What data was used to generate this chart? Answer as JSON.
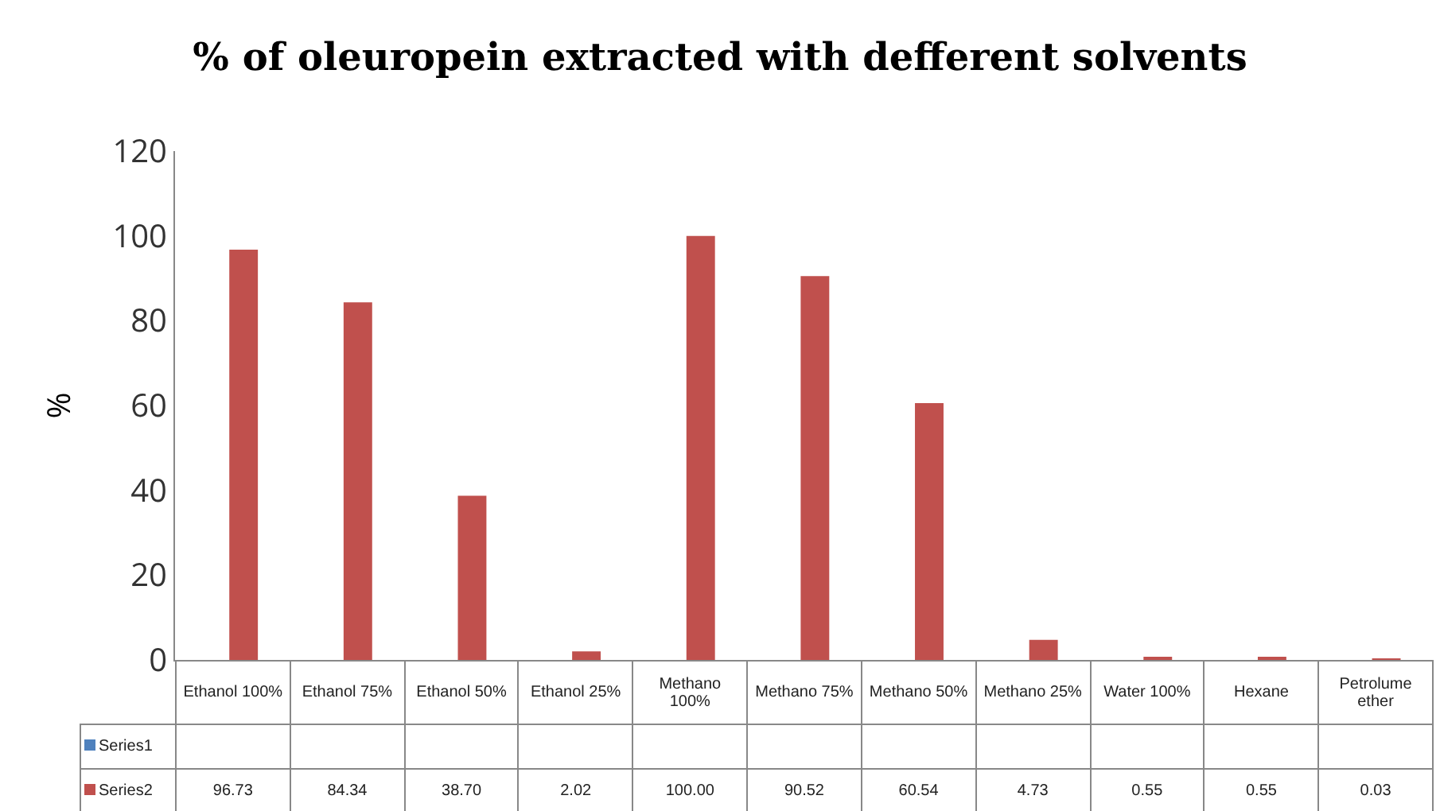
{
  "chart_data": {
    "type": "bar",
    "title": "% of oleuropein extracted with defferent solvents",
    "ylabel": "%",
    "categories": [
      "Ethanol 100%",
      "Ethanol 75%",
      "Ethanol 50%",
      "Ethanol 25%",
      "Methano 100%",
      "Methano 75%",
      "Methano 50%",
      "Methano 25%",
      "Water 100%",
      "Hexane",
      "Petrolume ether"
    ],
    "series": [
      {
        "name": "Series1",
        "color": "#4f81bd",
        "values": [
          null,
          null,
          null,
          null,
          null,
          null,
          null,
          null,
          null,
          null,
          null
        ]
      },
      {
        "name": "Series2",
        "color": "#c0504d",
        "values": [
          96.73,
          84.34,
          38.7,
          2.02,
          100.0,
          90.52,
          60.54,
          4.73,
          0.55,
          0.55,
          0.03
        ],
        "value_labels": [
          "96.73",
          "84.34",
          "38.70",
          "2.02",
          "100.00",
          "90.52",
          "60.54",
          "4.73",
          "0.55",
          "0.55",
          "0.03"
        ]
      }
    ],
    "ylim": [
      0,
      120
    ],
    "yticks": [
      0,
      20,
      40,
      60,
      80,
      100,
      120
    ],
    "grid": false,
    "legend": "bottom left"
  }
}
